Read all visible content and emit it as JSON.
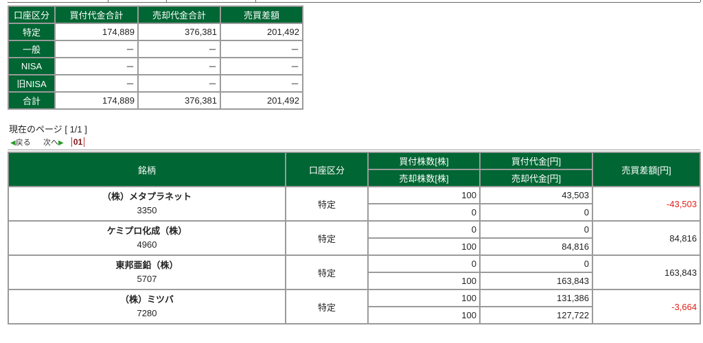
{
  "summary": {
    "headers": [
      "口座区分",
      "買付代金合計",
      "売却代金合計",
      "売買差額"
    ],
    "rows": [
      {
        "label": "特定",
        "buy": "174,889",
        "sell": "376,381",
        "diff": "201,492"
      },
      {
        "label": "一般",
        "buy": "－",
        "sell": "－",
        "diff": "－"
      },
      {
        "label": "NISA",
        "buy": "－",
        "sell": "－",
        "diff": "－"
      },
      {
        "label": "旧NISA",
        "buy": "－",
        "sell": "－",
        "diff": "－"
      },
      {
        "label": "合計",
        "buy": "174,889",
        "sell": "376,381",
        "diff": "201,492"
      }
    ]
  },
  "pagination": {
    "current": "現在のページ [ 1/1 ]",
    "prev": "戻る",
    "next": "次へ",
    "page": "01"
  },
  "details": {
    "headers": {
      "name": "銘柄",
      "account": "口座区分",
      "buy_qty": "買付株数[株]",
      "buy_amt": "買付代金[円]",
      "sell_qty": "売却株数[株]",
      "sell_amt": "売却代金[円]",
      "diff": "売買差額[円]"
    },
    "rows": [
      {
        "name": "（株）メタプラネット",
        "code": "3350",
        "account": "特定",
        "buy_qty": "100",
        "buy_amt": "43,503",
        "sell_qty": "0",
        "sell_amt": "0",
        "diff": "-43,503"
      },
      {
        "name": "ケミプロ化成（株）",
        "code": "4960",
        "account": "特定",
        "buy_qty": "0",
        "buy_amt": "0",
        "sell_qty": "100",
        "sell_amt": "84,816",
        "diff": "84,816"
      },
      {
        "name": "東邦亜鉛（株）",
        "code": "5707",
        "account": "特定",
        "buy_qty": "0",
        "buy_amt": "0",
        "sell_qty": "100",
        "sell_amt": "163,843",
        "diff": "163,843"
      },
      {
        "name": "（株）ミツバ",
        "code": "7280",
        "account": "特定",
        "buy_qty": "100",
        "buy_amt": "131,386",
        "sell_qty": "100",
        "sell_amt": "127,722",
        "diff": "-3,664"
      }
    ]
  },
  "colors": {
    "header_bg": "#006633",
    "negative": "#e0201a"
  }
}
